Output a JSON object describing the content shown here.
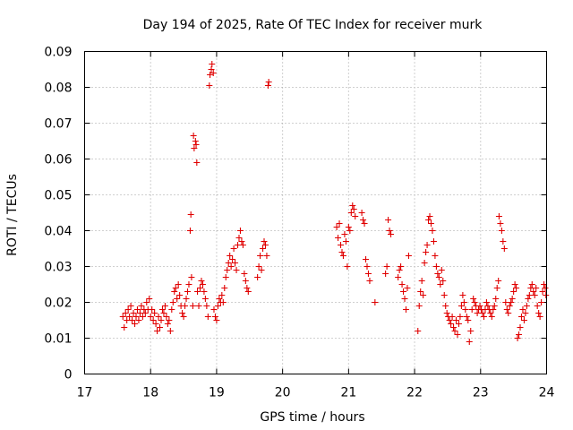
{
  "chart_data": {
    "type": "scatter",
    "title": "Day 194 of 2025, Rate Of TEC Index for receiver murk",
    "xlabel": "GPS time / hours",
    "ylabel": "ROTI / TECUs",
    "xlim": [
      17,
      24
    ],
    "ylim": [
      0,
      0.09
    ],
    "grid": true,
    "marker": "+",
    "color": "#e00000",
    "x_ticks": [
      17,
      18,
      19,
      20,
      21,
      22,
      23,
      24
    ],
    "x_tick_labels": [
      "17",
      "18",
      "19",
      "20",
      "21",
      "22",
      "23",
      "24"
    ],
    "y_ticks": [
      0,
      0.01,
      0.02,
      0.03,
      0.04,
      0.05,
      0.06,
      0.07,
      0.08,
      0.09
    ],
    "y_tick_labels": [
      "0",
      "0.01",
      "0.02",
      "0.03",
      "0.04",
      "0.05",
      "0.06",
      "0.07",
      "0.08",
      "0.09"
    ],
    "series": [
      {
        "name": "ROTI",
        "points": [
          [
            17.58,
            0.016
          ],
          [
            17.6,
            0.013
          ],
          [
            17.62,
            0.017
          ],
          [
            17.64,
            0.015
          ],
          [
            17.66,
            0.018
          ],
          [
            17.68,
            0.016
          ],
          [
            17.7,
            0.019
          ],
          [
            17.72,
            0.015
          ],
          [
            17.74,
            0.017
          ],
          [
            17.76,
            0.014
          ],
          [
            17.78,
            0.016
          ],
          [
            17.8,
            0.018
          ],
          [
            17.82,
            0.015
          ],
          [
            17.84,
            0.017
          ],
          [
            17.86,
            0.019
          ],
          [
            17.88,
            0.016
          ],
          [
            17.9,
            0.018
          ],
          [
            17.92,
            0.017
          ],
          [
            17.94,
            0.02
          ],
          [
            17.96,
            0.018
          ],
          [
            17.98,
            0.021
          ],
          [
            18.0,
            0.016
          ],
          [
            18.02,
            0.018
          ],
          [
            18.04,
            0.015
          ],
          [
            18.06,
            0.017
          ],
          [
            18.08,
            0.014
          ],
          [
            18.1,
            0.012
          ],
          [
            18.12,
            0.016
          ],
          [
            18.14,
            0.013
          ],
          [
            18.16,
            0.015
          ],
          [
            18.18,
            0.018
          ],
          [
            18.2,
            0.017
          ],
          [
            18.22,
            0.019
          ],
          [
            18.24,
            0.016
          ],
          [
            18.26,
            0.014
          ],
          [
            18.28,
            0.015
          ],
          [
            18.3,
            0.012
          ],
          [
            18.32,
            0.018
          ],
          [
            18.34,
            0.02
          ],
          [
            18.36,
            0.023
          ],
          [
            18.38,
            0.024
          ],
          [
            18.4,
            0.021
          ],
          [
            18.42,
            0.025
          ],
          [
            18.44,
            0.022
          ],
          [
            18.46,
            0.019
          ],
          [
            18.48,
            0.017
          ],
          [
            18.5,
            0.016
          ],
          [
            18.52,
            0.019
          ],
          [
            18.54,
            0.021
          ],
          [
            18.56,
            0.023
          ],
          [
            18.58,
            0.025
          ],
          [
            18.6,
            0.04
          ],
          [
            18.61,
            0.0445
          ],
          [
            18.62,
            0.027
          ],
          [
            18.64,
            0.019
          ],
          [
            18.65,
            0.0665
          ],
          [
            18.66,
            0.063
          ],
          [
            18.68,
            0.065
          ],
          [
            18.69,
            0.064
          ],
          [
            18.7,
            0.059
          ],
          [
            18.71,
            0.023
          ],
          [
            18.73,
            0.019
          ],
          [
            18.75,
            0.024
          ],
          [
            18.77,
            0.026
          ],
          [
            18.79,
            0.025
          ],
          [
            18.81,
            0.023
          ],
          [
            18.83,
            0.021
          ],
          [
            18.85,
            0.019
          ],
          [
            18.87,
            0.016
          ],
          [
            18.89,
            0.0805
          ],
          [
            18.9,
            0.0835
          ],
          [
            18.92,
            0.085
          ],
          [
            18.93,
            0.0865
          ],
          [
            18.95,
            0.084
          ],
          [
            18.96,
            0.018
          ],
          [
            18.98,
            0.016
          ],
          [
            19.0,
            0.015
          ],
          [
            19.02,
            0.019
          ],
          [
            19.04,
            0.021
          ],
          [
            19.06,
            0.02
          ],
          [
            19.08,
            0.022
          ],
          [
            19.1,
            0.02
          ],
          [
            19.12,
            0.024
          ],
          [
            19.14,
            0.027
          ],
          [
            19.16,
            0.029
          ],
          [
            19.18,
            0.031
          ],
          [
            19.2,
            0.033
          ],
          [
            19.22,
            0.03
          ],
          [
            19.24,
            0.032
          ],
          [
            19.26,
            0.035
          ],
          [
            19.28,
            0.031
          ],
          [
            19.3,
            0.029
          ],
          [
            19.32,
            0.036
          ],
          [
            19.34,
            0.038
          ],
          [
            19.36,
            0.04
          ],
          [
            19.38,
            0.037
          ],
          [
            19.4,
            0.036
          ],
          [
            19.42,
            0.028
          ],
          [
            19.44,
            0.026
          ],
          [
            19.46,
            0.024
          ],
          [
            19.48,
            0.023
          ],
          [
            19.62,
            0.027
          ],
          [
            19.64,
            0.03
          ],
          [
            19.66,
            0.033
          ],
          [
            19.68,
            0.029
          ],
          [
            19.7,
            0.035
          ],
          [
            19.72,
            0.037
          ],
          [
            19.74,
            0.036
          ],
          [
            19.76,
            0.033
          ],
          [
            19.78,
            0.0805
          ],
          [
            19.79,
            0.0815
          ],
          [
            20.82,
            0.041
          ],
          [
            20.84,
            0.038
          ],
          [
            20.86,
            0.042
          ],
          [
            20.88,
            0.036
          ],
          [
            20.9,
            0.034
          ],
          [
            20.92,
            0.033
          ],
          [
            20.94,
            0.039
          ],
          [
            20.96,
            0.037
          ],
          [
            20.98,
            0.03
          ],
          [
            21.0,
            0.041
          ],
          [
            21.02,
            0.04
          ],
          [
            21.04,
            0.045
          ],
          [
            21.06,
            0.047
          ],
          [
            21.08,
            0.046
          ],
          [
            21.1,
            0.044
          ],
          [
            21.2,
            0.045
          ],
          [
            21.22,
            0.043
          ],
          [
            21.24,
            0.042
          ],
          [
            21.26,
            0.032
          ],
          [
            21.28,
            0.03
          ],
          [
            21.3,
            0.028
          ],
          [
            21.32,
            0.026
          ],
          [
            21.4,
            0.02
          ],
          [
            21.56,
            0.028
          ],
          [
            21.58,
            0.03
          ],
          [
            21.6,
            0.043
          ],
          [
            21.62,
            0.04
          ],
          [
            21.64,
            0.039
          ],
          [
            21.75,
            0.027
          ],
          [
            21.77,
            0.029
          ],
          [
            21.79,
            0.03
          ],
          [
            21.81,
            0.025
          ],
          [
            21.83,
            0.023
          ],
          [
            21.85,
            0.021
          ],
          [
            21.87,
            0.018
          ],
          [
            21.89,
            0.024
          ],
          [
            21.91,
            0.033
          ],
          [
            22.05,
            0.012
          ],
          [
            22.07,
            0.019
          ],
          [
            22.09,
            0.023
          ],
          [
            22.11,
            0.026
          ],
          [
            22.13,
            0.022
          ],
          [
            22.15,
            0.031
          ],
          [
            22.17,
            0.034
          ],
          [
            22.19,
            0.036
          ],
          [
            22.21,
            0.043
          ],
          [
            22.23,
            0.044
          ],
          [
            22.25,
            0.042
          ],
          [
            22.27,
            0.04
          ],
          [
            22.29,
            0.037
          ],
          [
            22.31,
            0.033
          ],
          [
            22.33,
            0.03
          ],
          [
            22.35,
            0.028
          ],
          [
            22.37,
            0.027
          ],
          [
            22.39,
            0.025
          ],
          [
            22.41,
            0.029
          ],
          [
            22.43,
            0.026
          ],
          [
            22.45,
            0.022
          ],
          [
            22.47,
            0.019
          ],
          [
            22.49,
            0.017
          ],
          [
            22.51,
            0.016
          ],
          [
            22.53,
            0.015
          ],
          [
            22.55,
            0.014
          ],
          [
            22.57,
            0.016
          ],
          [
            22.59,
            0.013
          ],
          [
            22.61,
            0.012
          ],
          [
            22.63,
            0.015
          ],
          [
            22.65,
            0.011
          ],
          [
            22.67,
            0.014
          ],
          [
            22.69,
            0.016
          ],
          [
            22.71,
            0.019
          ],
          [
            22.73,
            0.022
          ],
          [
            22.75,
            0.02
          ],
          [
            22.77,
            0.018
          ],
          [
            22.79,
            0.016
          ],
          [
            22.81,
            0.015
          ],
          [
            22.83,
            0.009
          ],
          [
            22.85,
            0.012
          ],
          [
            22.87,
            0.018
          ],
          [
            22.89,
            0.021
          ],
          [
            22.91,
            0.02
          ],
          [
            22.93,
            0.019
          ],
          [
            22.95,
            0.017
          ],
          [
            22.97,
            0.018
          ],
          [
            22.99,
            0.019
          ],
          [
            23.01,
            0.018
          ],
          [
            23.03,
            0.017
          ],
          [
            23.05,
            0.016
          ],
          [
            23.07,
            0.018
          ],
          [
            23.09,
            0.02
          ],
          [
            23.11,
            0.019
          ],
          [
            23.13,
            0.018
          ],
          [
            23.15,
            0.017
          ],
          [
            23.17,
            0.016
          ],
          [
            23.19,
            0.018
          ],
          [
            23.21,
            0.019
          ],
          [
            23.23,
            0.021
          ],
          [
            23.25,
            0.024
          ],
          [
            23.27,
            0.026
          ],
          [
            23.28,
            0.044
          ],
          [
            23.3,
            0.042
          ],
          [
            23.32,
            0.04
          ],
          [
            23.34,
            0.037
          ],
          [
            23.36,
            0.035
          ],
          [
            23.38,
            0.02
          ],
          [
            23.4,
            0.018
          ],
          [
            23.42,
            0.017
          ],
          [
            23.44,
            0.019
          ],
          [
            23.46,
            0.02
          ],
          [
            23.48,
            0.021
          ],
          [
            23.5,
            0.023
          ],
          [
            23.52,
            0.025
          ],
          [
            23.54,
            0.024
          ],
          [
            23.56,
            0.01
          ],
          [
            23.58,
            0.011
          ],
          [
            23.6,
            0.013
          ],
          [
            23.62,
            0.016
          ],
          [
            23.64,
            0.018
          ],
          [
            23.66,
            0.015
          ],
          [
            23.68,
            0.017
          ],
          [
            23.7,
            0.019
          ],
          [
            23.72,
            0.021
          ],
          [
            23.74,
            0.022
          ],
          [
            23.76,
            0.024
          ],
          [
            23.78,
            0.025
          ],
          [
            23.8,
            0.023
          ],
          [
            23.82,
            0.022
          ],
          [
            23.84,
            0.024
          ],
          [
            23.86,
            0.019
          ],
          [
            23.88,
            0.017
          ],
          [
            23.9,
            0.016
          ],
          [
            23.92,
            0.02
          ],
          [
            23.94,
            0.023
          ],
          [
            23.96,
            0.025
          ],
          [
            23.98,
            0.024
          ],
          [
            23.99,
            0.022
          ]
        ]
      }
    ]
  }
}
